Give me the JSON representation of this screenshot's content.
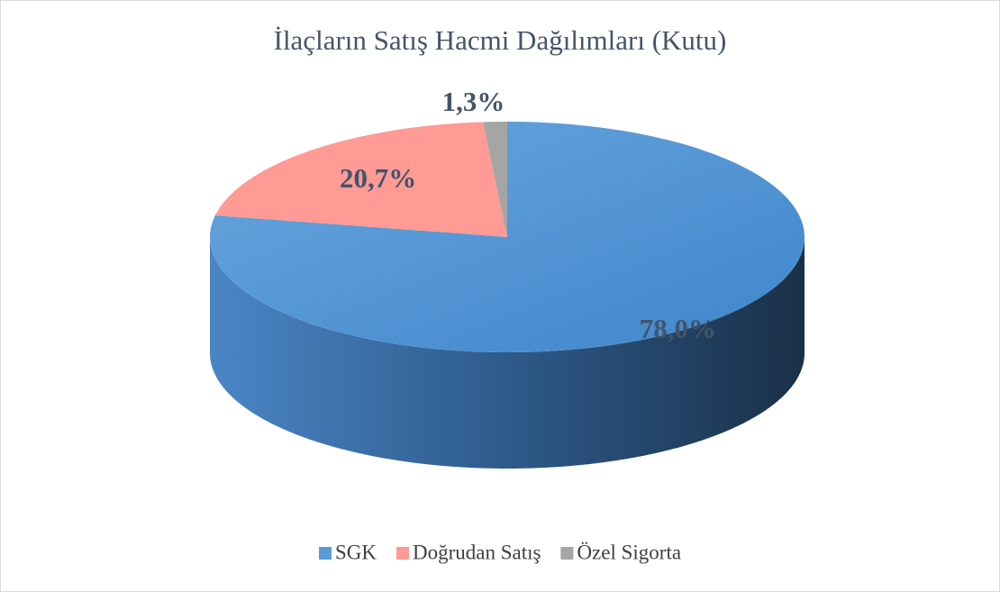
{
  "chart_data": {
    "type": "pie3d",
    "title": "İlaçların Satış Hacmi Dağılımları (Kutu)",
    "categories": [
      "SGK",
      "Doğrudan Satış",
      "Özel Sigorta"
    ],
    "values": [
      78.0,
      20.7,
      1.3
    ],
    "value_labels": [
      "78,0%",
      "20,7%",
      "1,3%"
    ],
    "colors": [
      "#5b9bd5",
      "#ff9a95",
      "#a5a5a5"
    ],
    "legend": "bottom"
  }
}
